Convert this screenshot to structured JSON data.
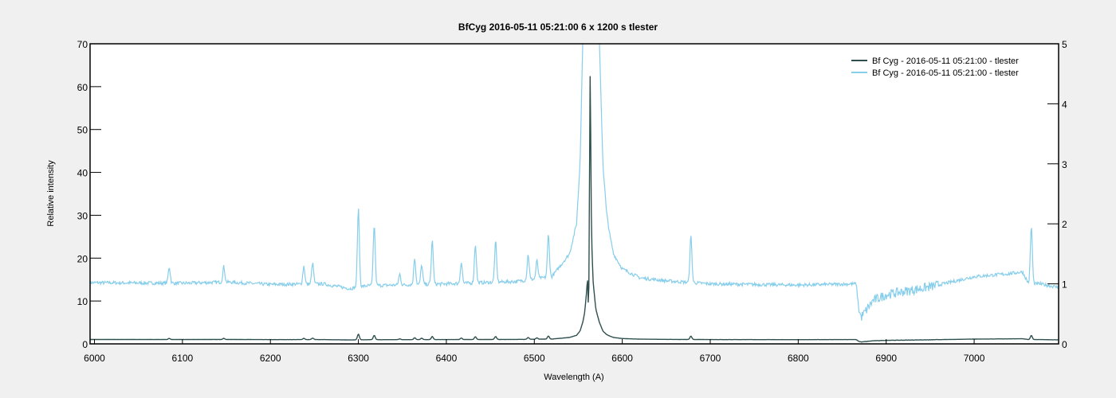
{
  "chart_data": {
    "type": "line",
    "title": "BfCyg  2016-05-11 05:21:00  6 x 1200 s  tlester",
    "xlabel": "Wavelength (A)",
    "ylabel": "Relative intensity",
    "xlim": [
      5995,
      7096
    ],
    "ylim_left": [
      0,
      70
    ],
    "ylim_right": [
      0,
      5
    ],
    "x_ticks": [
      6000,
      6100,
      6200,
      6300,
      6400,
      6500,
      6600,
      6700,
      6800,
      6900,
      7000
    ],
    "y_ticks_left": [
      0,
      10,
      20,
      30,
      40,
      50,
      60,
      70
    ],
    "y_ticks_right": [
      0,
      1,
      2,
      3,
      4,
      5
    ],
    "grid": false,
    "legend_position": "top-right",
    "series": [
      {
        "name": "Bf Cyg - 2016-05-11  05:21:00 - tlester",
        "axis": "left",
        "color": "#2f4f4f"
      },
      {
        "name": "Bf Cyg - 2016-05-11  05:21:00 - tlester",
        "axis": "right",
        "color": "#87ceeb"
      }
    ],
    "spectrum": {
      "continuum": [
        [
          5995,
          1.02
        ],
        [
          6100,
          1.01
        ],
        [
          6150,
          1.03
        ],
        [
          6200,
          0.99
        ],
        [
          6260,
          1.0
        ],
        [
          6290,
          0.92
        ],
        [
          6310,
          0.97
        ],
        [
          6400,
          1.0
        ],
        [
          6480,
          1.04
        ],
        [
          6520,
          1.12
        ],
        [
          6540,
          1.5
        ],
        [
          6548,
          2.0
        ],
        [
          6552,
          3.0
        ],
        [
          6555,
          5.0
        ],
        [
          6557,
          7.0
        ],
        [
          6559,
          11.0
        ],
        [
          6560.5,
          15.5
        ],
        [
          6561.8,
          6.0
        ],
        [
          6563.5,
          66.0
        ],
        [
          6565,
          25.0
        ],
        [
          6567,
          14.0
        ],
        [
          6570,
          8.0
        ],
        [
          6574,
          5.0
        ],
        [
          6578,
          3.0
        ],
        [
          6582,
          2.2
        ],
        [
          6586,
          1.8
        ],
        [
          6590,
          1.5
        ],
        [
          6600,
          1.25
        ],
        [
          6620,
          1.1
        ],
        [
          6650,
          1.05
        ],
        [
          6700,
          1.0
        ],
        [
          6800,
          0.98
        ],
        [
          6866,
          1.0
        ],
        [
          6869,
          0.55
        ],
        [
          6872,
          0.45
        ],
        [
          6885,
          0.72
        ],
        [
          6900,
          0.82
        ],
        [
          6950,
          0.95
        ],
        [
          7000,
          1.12
        ],
        [
          7040,
          1.17
        ],
        [
          7055,
          1.2
        ],
        [
          7062,
          1.0
        ],
        [
          7075,
          1.0
        ],
        [
          7096,
          0.94
        ]
      ],
      "emission_lines": [
        [
          6085,
          0.27
        ],
        [
          6147,
          0.26
        ],
        [
          6238,
          0.3
        ],
        [
          6248,
          0.35
        ],
        [
          6300,
          1.3
        ],
        [
          6318,
          1.0
        ],
        [
          6347,
          0.18
        ],
        [
          6364,
          0.44
        ],
        [
          6372,
          0.32
        ],
        [
          6384,
          0.72
        ],
        [
          6417,
          0.35
        ],
        [
          6433,
          0.64
        ],
        [
          6456,
          0.67
        ],
        [
          6493,
          0.42
        ],
        [
          6503,
          0.3
        ],
        [
          6516,
          0.7
        ],
        [
          6678,
          0.77
        ],
        [
          7065,
          0.95
        ]
      ]
    }
  }
}
